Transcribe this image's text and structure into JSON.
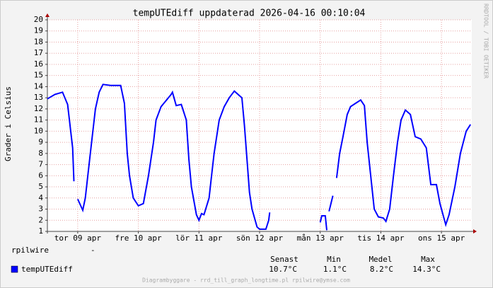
{
  "chart_data": {
    "type": "line",
    "title": "tempUTEdiff uppdaterad 2026-04-16 00:10:04",
    "y_label": "Grader i Celsius",
    "watermark": "RRDTOOL / TOBI OETIKER",
    "footer": "Diagrambyggare - rrd_till_graph_longtime.pl rpilwire@ymse.com",
    "host_label": "rpilwire",
    "host_value": "-",
    "x": [
      0,
      3,
      6,
      8,
      10,
      10.5,
      11,
      12,
      14,
      15,
      17,
      19,
      20.5,
      22,
      25,
      29,
      30.5,
      31.6,
      32.5,
      34,
      36,
      38,
      40,
      42,
      43,
      45,
      49,
      49.5,
      51,
      53,
      55,
      56,
      57,
      59,
      60,
      61,
      62,
      64,
      65,
      66,
      68,
      70,
      72,
      74,
      77,
      78,
      80,
      81,
      83,
      84,
      86.5,
      87.6,
      88,
      89,
      108,
      108.6,
      110,
      110.6,
      111,
      111.5,
      113,
      114,
      114.5,
      115.7,
      117,
      118.7,
      120,
      122,
      124,
      125.5,
      126.6,
      128,
      129.4,
      131,
      133,
      134,
      135.5,
      137,
      138.6,
      140,
      141.7,
      143.7,
      145.6,
      147.8,
      150,
      151.8,
      154,
      155.4,
      157.7,
      159,
      161.3,
      163.5,
      165.8,
      167.5
    ],
    "xlim": [
      0,
      168
    ],
    "xticks": [
      {
        "value": 12,
        "label": "tor 09 apr"
      },
      {
        "value": 36,
        "label": "fre 10 apr"
      },
      {
        "value": 60,
        "label": "lör 11 apr"
      },
      {
        "value": 84,
        "label": "sön 12 apr"
      },
      {
        "value": 108,
        "label": "mån 13 apr"
      },
      {
        "value": 132,
        "label": "tis 14 apr"
      },
      {
        "value": 156,
        "label": "ons 15 apr"
      }
    ],
    "ylim": [
      1,
      20
    ],
    "yticks": [
      1,
      2,
      3,
      4,
      5,
      6,
      7,
      8,
      9,
      10,
      11,
      12,
      13,
      14,
      15,
      16,
      17,
      18,
      19,
      20
    ],
    "grid": true,
    "series": [
      {
        "name": "tempUTEdiff",
        "color": "#0000ff",
        "values": [
          12.9,
          13.3,
          13.5,
          12.4,
          8.5,
          5.5,
          null,
          3.9,
          2.9,
          4.0,
          8.0,
          12.0,
          13.5,
          14.2,
          14.1,
          14.1,
          12.5,
          8.0,
          6.0,
          4.0,
          3.3,
          3.5,
          6.0,
          9.0,
          11.0,
          12.2,
          13.3,
          13.5,
          12.3,
          12.4,
          11.0,
          7.5,
          5.0,
          2.5,
          2.0,
          2.6,
          2.5,
          4.0,
          6.0,
          8.0,
          11.0,
          12.2,
          13.0,
          13.6,
          13.0,
          10.5,
          4.5,
          3.0,
          1.4,
          1.2,
          1.2,
          2.0,
          2.7,
          null,
          1.8,
          2.4,
          2.4,
          1.1,
          null,
          2.8,
          4.2,
          null,
          5.8,
          8.0,
          9.5,
          11.5,
          12.2,
          12.5,
          12.8,
          12.3,
          9.0,
          6.0,
          3.0,
          2.3,
          2.2,
          1.9,
          3.0,
          6.0,
          9.0,
          11.0,
          11.9,
          11.5,
          9.5,
          9.3,
          8.5,
          5.2,
          5.2,
          3.5,
          1.6,
          2.5,
          5.0,
          8.0,
          10.0,
          10.6
        ]
      }
    ],
    "stats": {
      "headers": [
        "Senast",
        "Min",
        "Medel",
        "Max"
      ],
      "values": [
        "10.7°C",
        "1.1°C",
        "8.2°C",
        "14.3°C"
      ]
    }
  }
}
